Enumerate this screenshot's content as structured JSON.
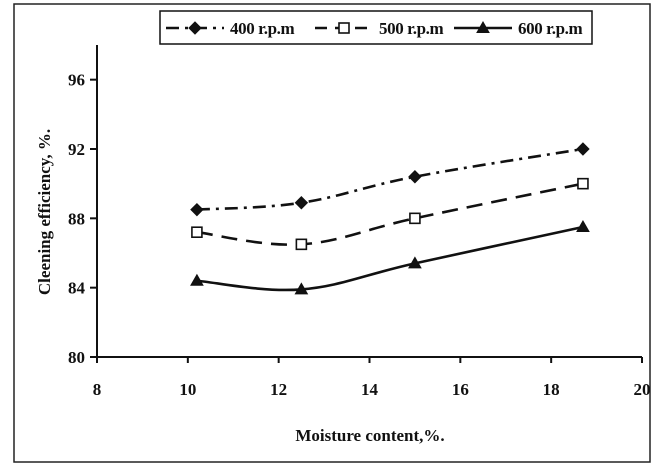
{
  "chart_data": {
    "type": "line",
    "title": "",
    "xlabel": "Moisture content,%.",
    "ylabel": "Cleening efficiency, %.",
    "xlim": [
      8,
      20
    ],
    "ylim": [
      80,
      98
    ],
    "xticks": [
      "8",
      "10",
      "12",
      "14",
      "16",
      "18",
      "20"
    ],
    "yticks": [
      "80",
      "84",
      "88",
      "92",
      "96"
    ],
    "grid": false,
    "legend_position": "top",
    "x": [
      10.2,
      12.5,
      15.0,
      18.7
    ],
    "series": [
      {
        "name": "400 r.p.m",
        "values": [
          88.5,
          88.9,
          90.4,
          92.0
        ],
        "marker": "filled-diamond",
        "line_style": "dash-dot",
        "color": "#111111"
      },
      {
        "name": "500 r.p.m",
        "values": [
          87.2,
          86.5,
          88.0,
          90.0
        ],
        "marker": "open-square",
        "line_style": "dashed",
        "color": "#111111"
      },
      {
        "name": "600 r.p.m",
        "values": [
          84.4,
          83.9,
          85.4,
          87.5
        ],
        "marker": "filled-triangle",
        "line_style": "solid",
        "color": "#111111"
      }
    ]
  }
}
